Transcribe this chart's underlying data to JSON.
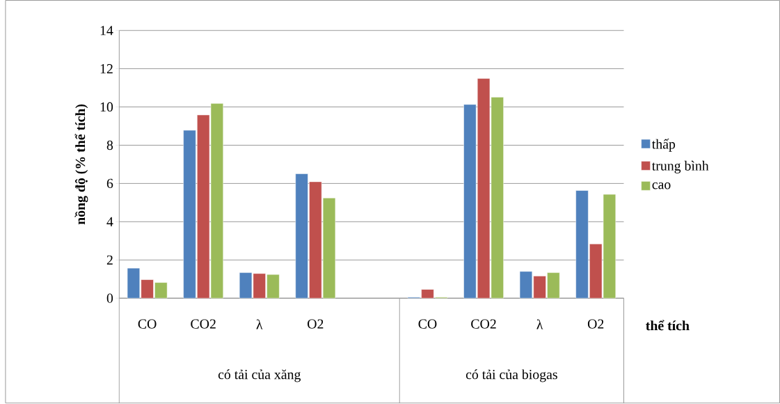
{
  "chart_data": {
    "type": "bar",
    "categories": [
      "CO",
      "CO2",
      "λ",
      "O2",
      null,
      "CO",
      "CO2",
      "λ",
      "O2"
    ],
    "series": [
      {
        "name": "thấp",
        "color": "#4f81bd",
        "values": [
          1.57,
          8.78,
          1.34,
          6.51,
          null,
          0.05,
          10.13,
          1.4,
          5.63
        ]
      },
      {
        "name": "trung bình",
        "color": "#c0504d",
        "values": [
          0.97,
          9.58,
          1.29,
          6.09,
          null,
          0.46,
          11.49,
          1.16,
          2.84
        ]
      },
      {
        "name": "cao",
        "color": "#9bbb59",
        "values": [
          0.82,
          10.18,
          1.24,
          5.24,
          null,
          0.05,
          10.51,
          1.34,
          5.43
        ]
      }
    ],
    "ylabel": "nồng độ (% thể tích)",
    "xlabel": "thể tích",
    "annotations": [
      "có tải của xăng",
      "có tải của biogas"
    ],
    "ylim": [
      0,
      14
    ],
    "yticks": [
      0,
      2,
      4,
      6,
      8,
      10,
      12,
      14
    ],
    "grid": "y",
    "legend": "right"
  }
}
